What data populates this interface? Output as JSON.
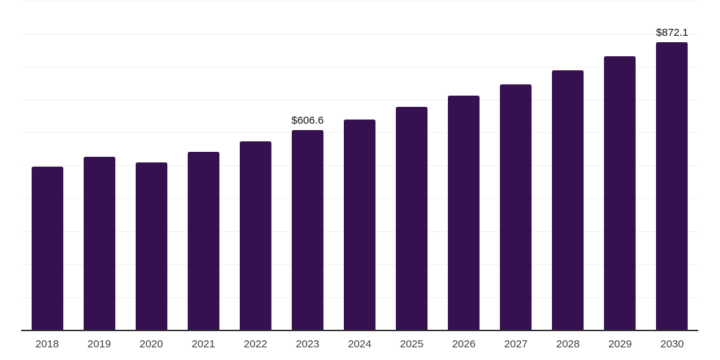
{
  "chart": {
    "background_color": "#ffffff",
    "bar_color": "#36114F",
    "axis_line_color": "#333333",
    "gridline_color": "#f0f0f0",
    "data_label_color": "#111111",
    "tick_label_color": "#3c3c3c"
  },
  "chart_data": {
    "type": "bar",
    "categories": [
      "2018",
      "2019",
      "2020",
      "2021",
      "2022",
      "2023",
      "2024",
      "2025",
      "2026",
      "2027",
      "2028",
      "2029",
      "2030"
    ],
    "values": [
      495.4,
      525.3,
      508.2,
      540.8,
      572.8,
      606.6,
      639.0,
      676.7,
      710.9,
      745.7,
      787.7,
      830.4,
      872.1
    ],
    "data_labels": [
      "",
      "",
      "",
      "",
      "",
      "$606.6",
      "",
      "",
      "",
      "",
      "",
      "",
      "$872.1"
    ],
    "ylim": [
      0,
      1000
    ],
    "gridline_step": 100,
    "grid": true,
    "legend": "none",
    "currency_prefix": "$"
  }
}
